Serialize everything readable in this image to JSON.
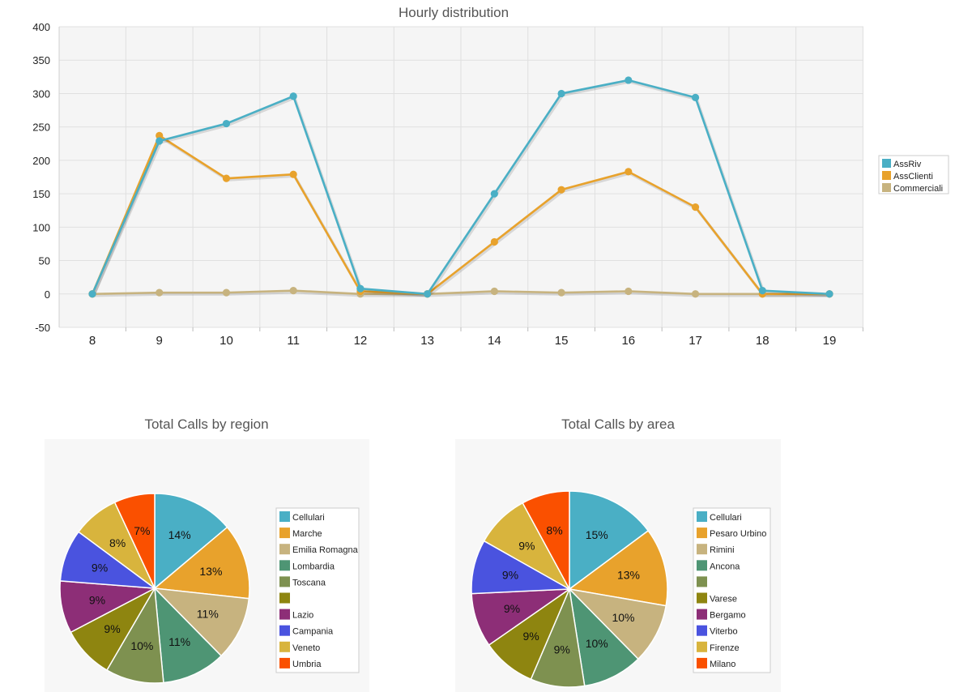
{
  "chart_data": [
    {
      "type": "line",
      "title": "Hourly distribution",
      "x": [
        8,
        9,
        10,
        11,
        12,
        13,
        14,
        15,
        16,
        17,
        18,
        19
      ],
      "ylim": [
        -50,
        400
      ],
      "yticks": [
        -50,
        0,
        50,
        100,
        150,
        200,
        250,
        300,
        350,
        400
      ],
      "grid": true,
      "legend_position": "right",
      "series": [
        {
          "name": "AssRiv",
          "color": "#4AAFC5",
          "values": [
            0,
            229,
            255,
            296,
            8,
            0,
            150,
            300,
            320,
            294,
            5,
            0
          ]
        },
        {
          "name": "AssClienti",
          "color": "#E8A22C",
          "values": [
            0,
            237,
            173,
            179,
            4,
            0,
            78,
            156,
            183,
            130,
            0,
            0
          ]
        },
        {
          "name": "Commerciali",
          "color": "#C7B37F",
          "values": [
            0,
            2,
            2,
            5,
            0,
            0,
            4,
            2,
            4,
            0,
            0,
            0
          ]
        }
      ]
    },
    {
      "type": "pie",
      "title": "Total Calls by region",
      "legend_position": "right",
      "slices": [
        {
          "label": "Cellulari",
          "value": 14,
          "color": "#4AAFC5"
        },
        {
          "label": "Marche",
          "value": 13,
          "color": "#E8A22C"
        },
        {
          "label": "Emilia Romagna",
          "value": 11,
          "color": "#C7B37F"
        },
        {
          "label": "Lombardia",
          "value": 11,
          "color": "#4E9574"
        },
        {
          "label": "Toscana",
          "value": 10,
          "color": "#7E9150"
        },
        {
          "label": "",
          "value": 9,
          "color": "#8E8510"
        },
        {
          "label": "Lazio",
          "value": 9,
          "color": "#8D2E77"
        },
        {
          "label": "Campania",
          "value": 9,
          "color": "#4A53DF"
        },
        {
          "label": "Veneto",
          "value": 8,
          "color": "#D8B43D"
        },
        {
          "label": "Umbria",
          "value": 7,
          "color": "#FA5000"
        }
      ]
    },
    {
      "type": "pie",
      "title": "Total Calls by area",
      "legend_position": "right",
      "slices": [
        {
          "label": "Cellulari",
          "value": 15,
          "color": "#4AAFC5"
        },
        {
          "label": "Pesaro Urbino",
          "value": 13,
          "color": "#E8A22C"
        },
        {
          "label": "Rimini",
          "value": 10,
          "color": "#C7B37F"
        },
        {
          "label": "Ancona",
          "value": 10,
          "color": "#4E9574"
        },
        {
          "label": "",
          "value": 9,
          "color": "#7E9150"
        },
        {
          "label": "Varese",
          "value": 9,
          "color": "#8E8510"
        },
        {
          "label": "Bergamo",
          "value": 9,
          "color": "#8D2E77"
        },
        {
          "label": "Viterbo",
          "value": 9,
          "color": "#4A53DF"
        },
        {
          "label": "Firenze",
          "value": 9,
          "color": "#D8B43D"
        },
        {
          "label": "Milano",
          "value": 8,
          "color": "#FA5000"
        }
      ]
    }
  ]
}
